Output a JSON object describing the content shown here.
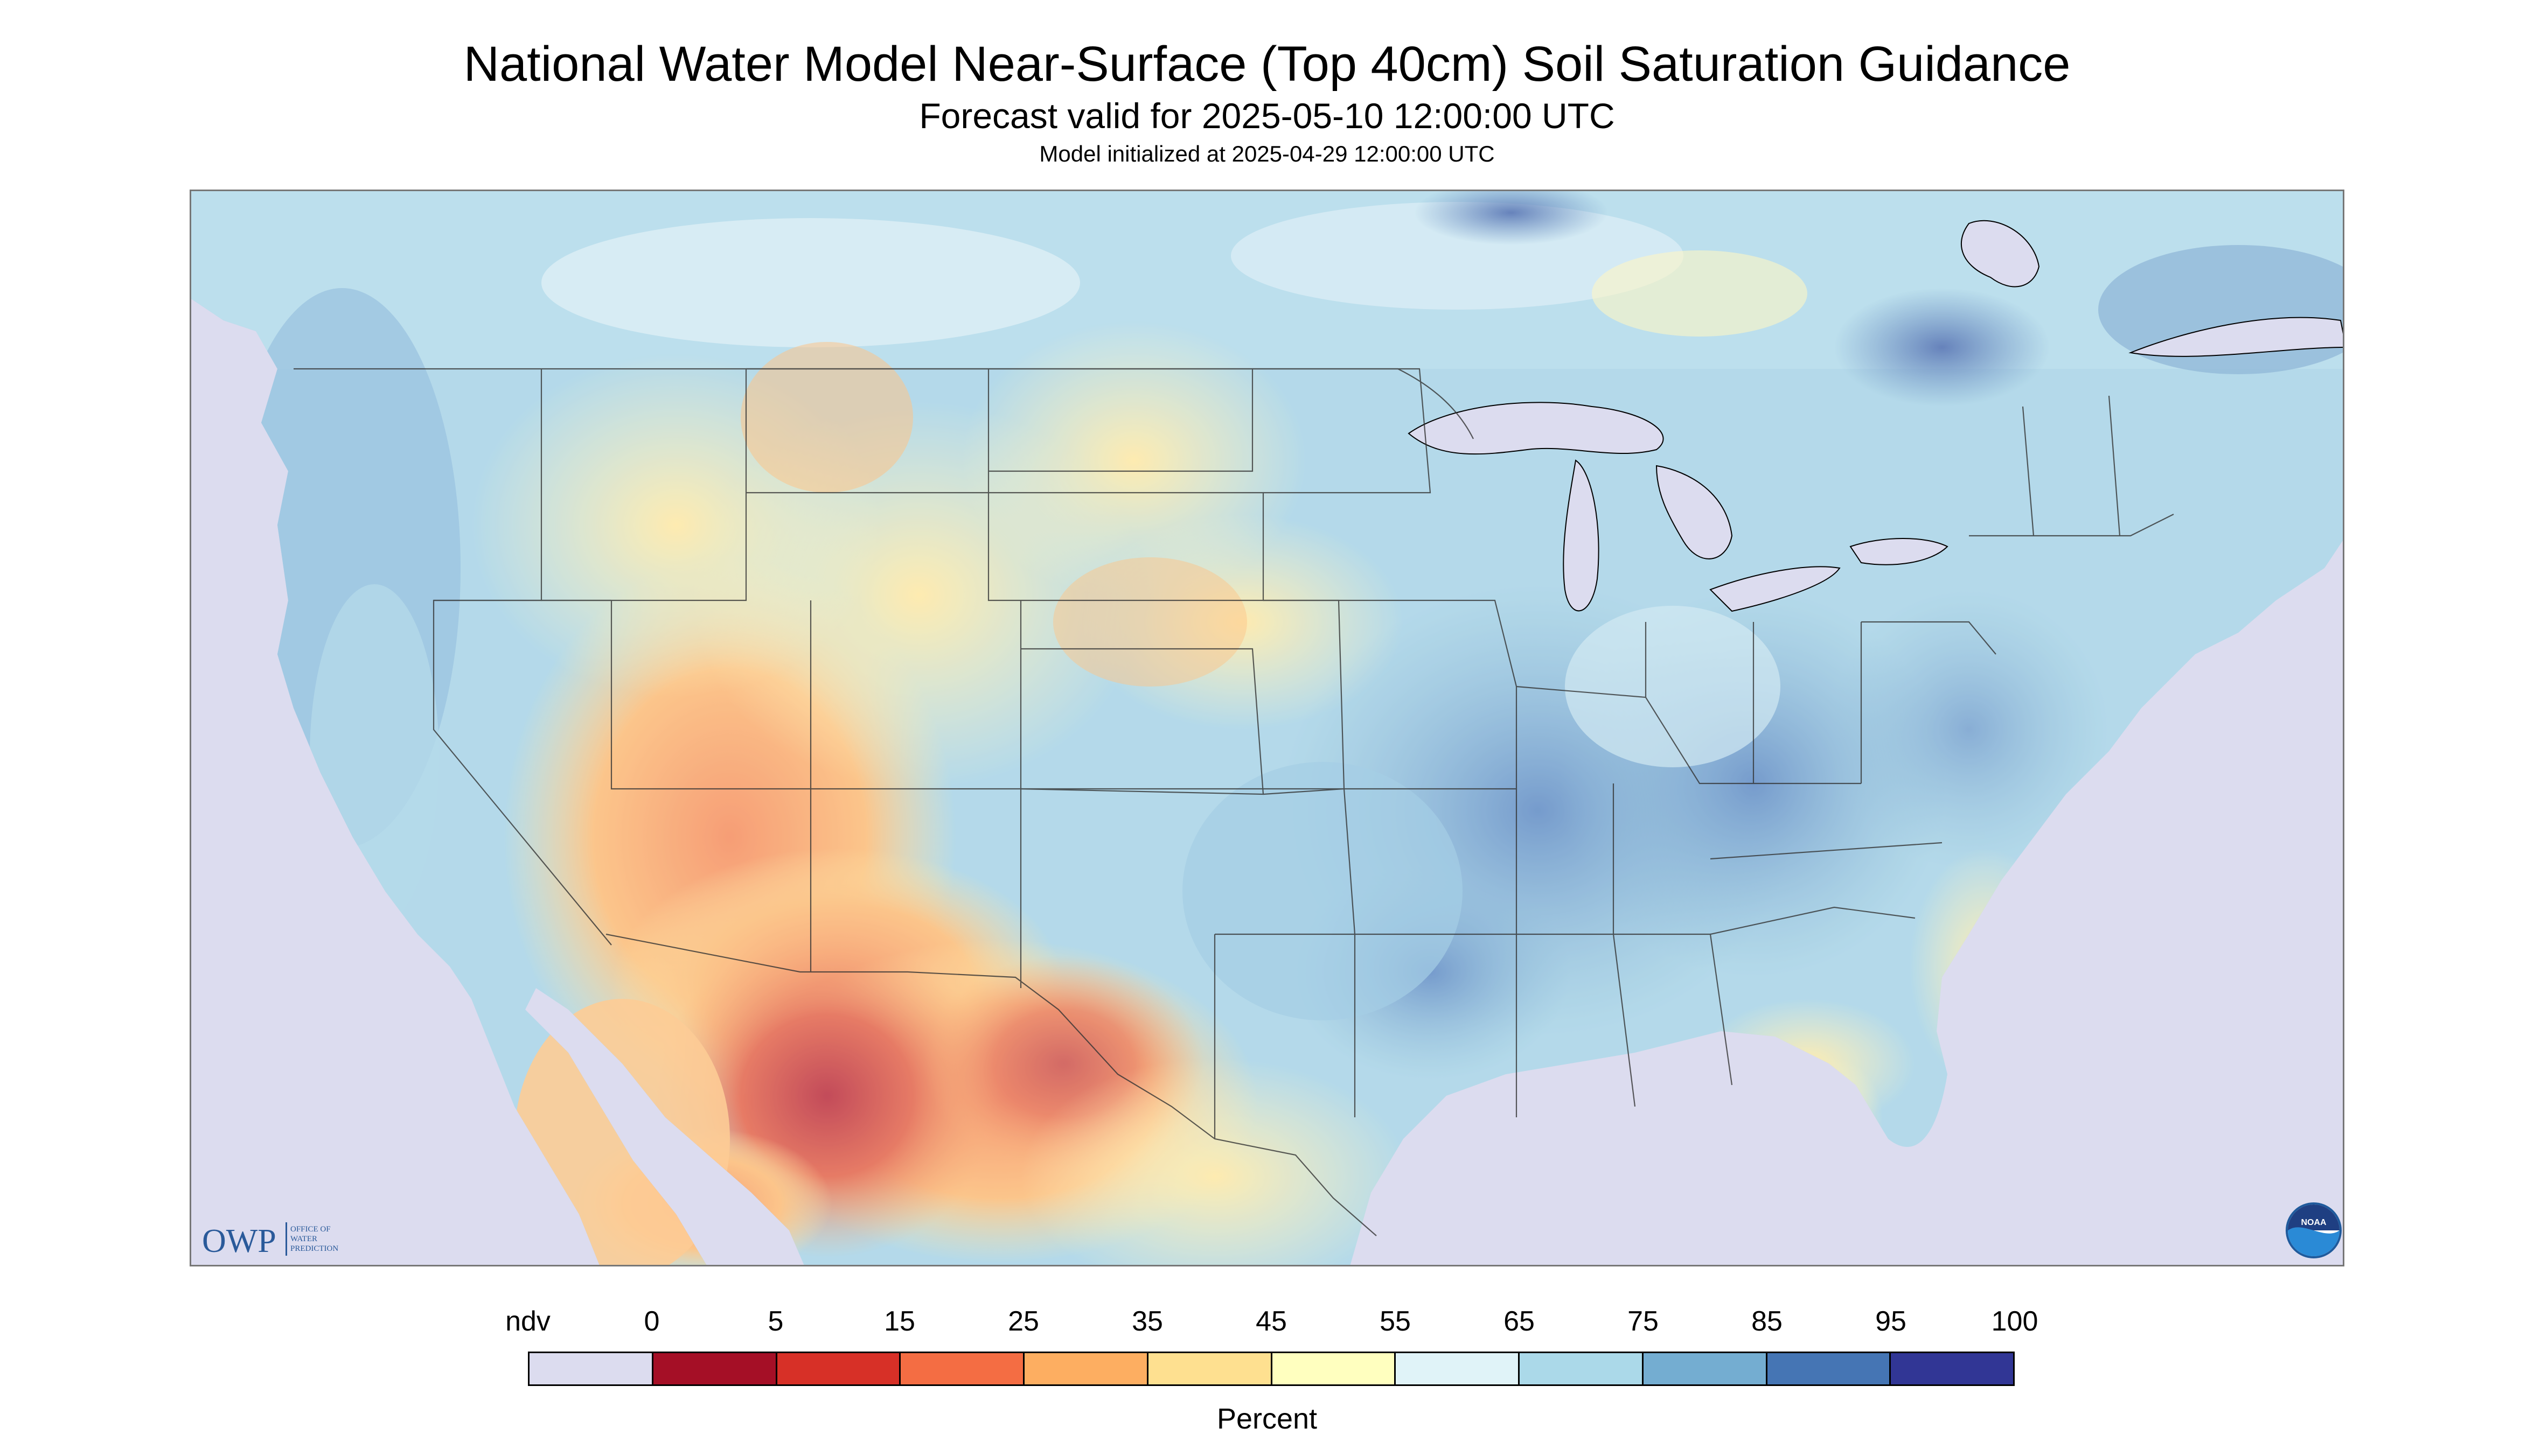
{
  "header": {
    "title": "National Water Model Near-Surface (Top 40cm) Soil Saturation Guidance",
    "subtitle": "Forecast valid for 2025-05-10 12:00:00 UTC",
    "init": "Model initialized at 2025-04-29 12:00:00 UTC"
  },
  "logos": {
    "owp_text": "OWP",
    "owp_sub": "OFFICE OF WATER PREDICTION",
    "noaa_text": "NOAA"
  },
  "legend": {
    "title": "Percent",
    "labels": [
      "ndv",
      "0",
      "5",
      "15",
      "25",
      "35",
      "45",
      "55",
      "65",
      "75",
      "85",
      "95",
      "100"
    ],
    "colors": [
      "#dcdcef",
      "#a50f26",
      "#d73027",
      "#f46d43",
      "#fdae61",
      "#fee090",
      "#ffffbf",
      "#e0f3f8",
      "#abd9e9",
      "#74add1",
      "#4575b4",
      "#313695"
    ]
  },
  "map": {
    "colors": {
      "nodata": "#dcdcef",
      "water": "#dcdcef",
      "border": "#333333"
    }
  }
}
